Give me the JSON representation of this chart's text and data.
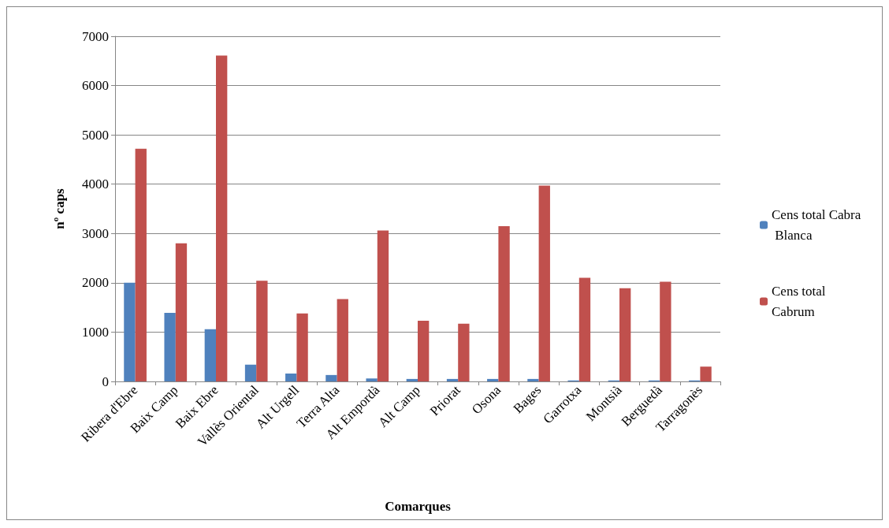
{
  "chart_data": {
    "type": "bar",
    "xlabel": "Comarques",
    "ylabel": "nº caps",
    "categories": [
      "Ribera d'Ebre",
      "Baix Camp",
      "Baix Ebre",
      "Vallès Oriental",
      "Alt Urgell",
      "Terra Alta",
      "Alt Empordà",
      "Alt Camp",
      "Priorat",
      "Osona",
      "Bages",
      "Garrotxa",
      "Montsià",
      "Berguedà",
      "Tarragonès"
    ],
    "series": [
      {
        "name": "Cens total Cabra Blanca",
        "color": "#4f81bd",
        "values": [
          2000,
          1390,
          1060,
          340,
          160,
          130,
          60,
          50,
          50,
          50,
          50,
          20,
          20,
          20,
          20
        ]
      },
      {
        "name": "Cens total Cabrum",
        "color": "#c0504d",
        "values": [
          4720,
          2800,
          6610,
          2040,
          1380,
          1670,
          3060,
          1230,
          1170,
          3150,
          3970,
          2100,
          1890,
          2020,
          300
        ]
      }
    ],
    "ylim": [
      0,
      7000
    ],
    "yticks": [
      0,
      1000,
      2000,
      3000,
      4000,
      5000,
      6000,
      7000
    ],
    "grid": "y",
    "legend": "right"
  }
}
